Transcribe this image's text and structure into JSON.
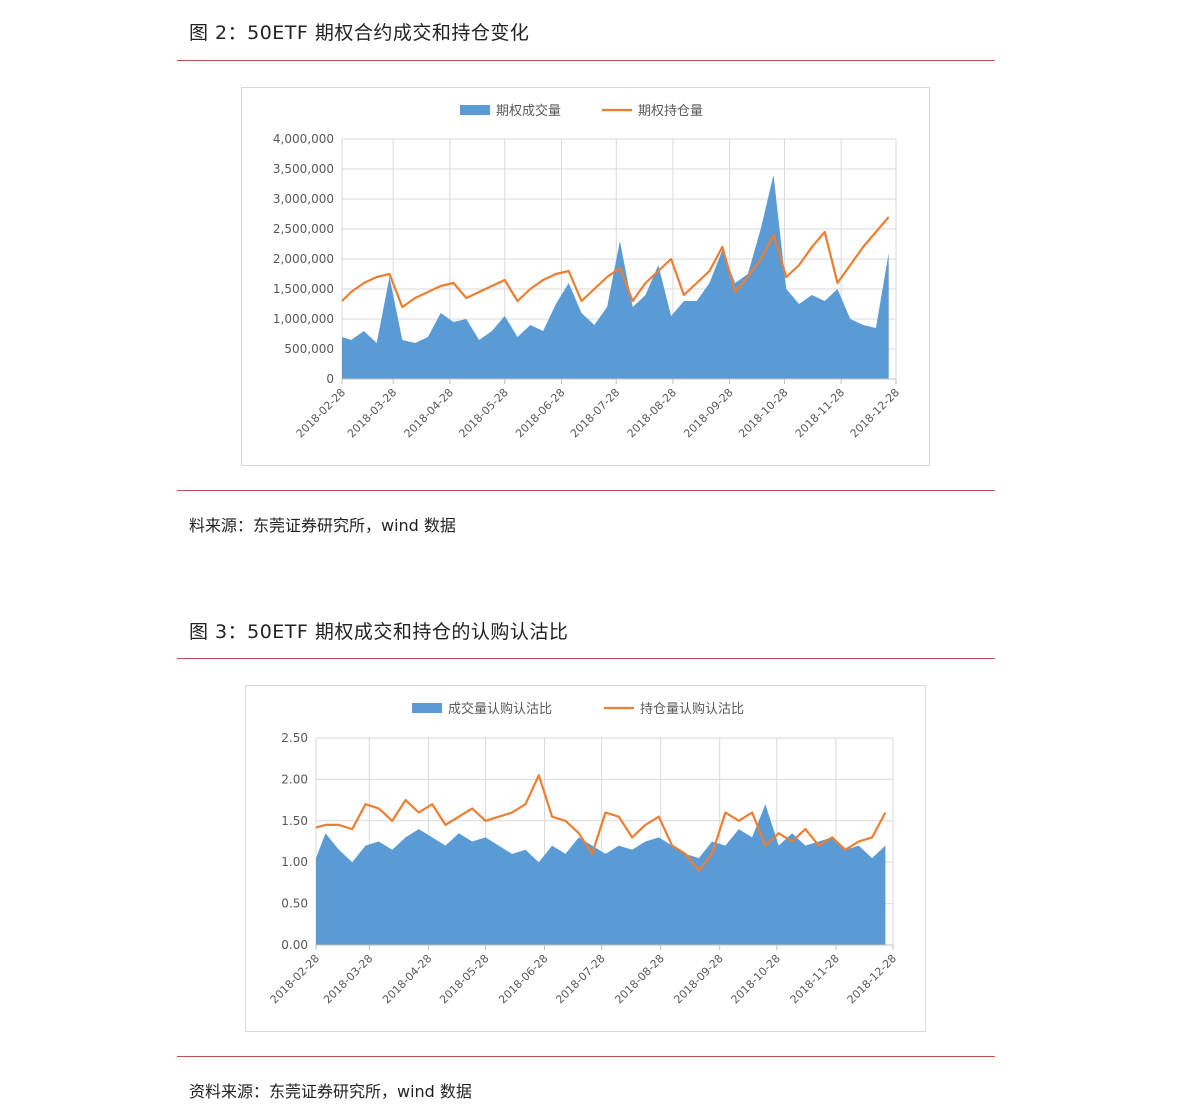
{
  "figures": [
    {
      "title": "图 2：50ETF 期权合约成交和持仓变化",
      "source": "料来源：东莞证券研究所，wind 数据"
    },
    {
      "title": "图 3：50ETF 期权成交和持仓的认购认沽比",
      "source": "资料来源：东莞证券研究所，wind 数据"
    }
  ],
  "colors": {
    "rule": "#c0504d",
    "area": "#5b9bd5",
    "line": "#ed7d31",
    "grid": "#d9d9d9"
  },
  "chart_data": [
    {
      "type": "area",
      "legend_position": "top",
      "grid": true,
      "x_ticks": [
        "2018-02-28",
        "2018-03-28",
        "2018-04-28",
        "2018-05-28",
        "2018-06-28",
        "2018-07-28",
        "2018-08-28",
        "2018-09-28",
        "2018-10-28",
        "2018-11-28",
        "2018-12-28"
      ],
      "ylim": [
        0,
        4000000
      ],
      "y_ticks": [
        "0",
        "500,000",
        "1,000,000",
        "1,500,000",
        "2,000,000",
        "2,500,000",
        "3,000,000",
        "3,500,000",
        "4,000,000"
      ],
      "x_dates": [
        "2018-02-28",
        "2018-03-05",
        "2018-03-12",
        "2018-03-19",
        "2018-03-26",
        "2018-04-02",
        "2018-04-09",
        "2018-04-16",
        "2018-04-23",
        "2018-04-30",
        "2018-05-07",
        "2018-05-14",
        "2018-05-21",
        "2018-05-28",
        "2018-06-04",
        "2018-06-11",
        "2018-06-18",
        "2018-06-25",
        "2018-07-02",
        "2018-07-09",
        "2018-07-16",
        "2018-07-23",
        "2018-07-30",
        "2018-08-06",
        "2018-08-13",
        "2018-08-20",
        "2018-08-27",
        "2018-09-03",
        "2018-09-10",
        "2018-09-17",
        "2018-09-24",
        "2018-10-01",
        "2018-10-08",
        "2018-10-15",
        "2018-10-22",
        "2018-10-29",
        "2018-11-05",
        "2018-11-12",
        "2018-11-19",
        "2018-11-26",
        "2018-12-03",
        "2018-12-10",
        "2018-12-17",
        "2018-12-24"
      ],
      "series": [
        {
          "name": "期权成交量",
          "kind": "area",
          "values": [
            700000,
            650000,
            800000,
            600000,
            1700000,
            650000,
            600000,
            700000,
            1100000,
            950000,
            1000000,
            650000,
            800000,
            1050000,
            700000,
            900000,
            800000,
            1250000,
            1600000,
            1100000,
            900000,
            1200000,
            2300000,
            1200000,
            1400000,
            1900000,
            1050000,
            1300000,
            1300000,
            1600000,
            2150000,
            1600000,
            1750000,
            2500000,
            3400000,
            1500000,
            1250000,
            1400000,
            1300000,
            1500000,
            1000000,
            900000,
            850000,
            2100000
          ]
        },
        {
          "name": "期权持仓量",
          "kind": "line",
          "values": [
            1300000,
            1450000,
            1600000,
            1700000,
            1750000,
            1200000,
            1350000,
            1450000,
            1550000,
            1600000,
            1350000,
            1450000,
            1550000,
            1650000,
            1300000,
            1500000,
            1650000,
            1750000,
            1800000,
            1300000,
            1500000,
            1700000,
            1850000,
            1300000,
            1600000,
            1800000,
            2000000,
            1400000,
            1600000,
            1800000,
            2200000,
            1450000,
            1700000,
            2000000,
            2400000,
            1700000,
            1900000,
            2200000,
            2450000,
            1600000,
            1900000,
            2200000,
            2450000,
            2700000
          ]
        }
      ]
    },
    {
      "type": "area",
      "legend_position": "top",
      "grid": true,
      "x_ticks": [
        "2018-02-28",
        "2018-03-28",
        "2018-04-28",
        "2018-05-28",
        "2018-06-28",
        "2018-07-28",
        "2018-08-28",
        "2018-09-28",
        "2018-10-28",
        "2018-11-28",
        "2018-12-28"
      ],
      "ylim": [
        0,
        2.5
      ],
      "y_ticks": [
        "0.00",
        "0.50",
        "1.00",
        "1.50",
        "2.00",
        "2.50"
      ],
      "x_dates": [
        "2018-02-28",
        "2018-03-05",
        "2018-03-12",
        "2018-03-19",
        "2018-03-26",
        "2018-04-02",
        "2018-04-09",
        "2018-04-16",
        "2018-04-23",
        "2018-04-30",
        "2018-05-07",
        "2018-05-14",
        "2018-05-21",
        "2018-05-28",
        "2018-06-04",
        "2018-06-11",
        "2018-06-18",
        "2018-06-25",
        "2018-07-02",
        "2018-07-09",
        "2018-07-16",
        "2018-07-23",
        "2018-07-30",
        "2018-08-06",
        "2018-08-13",
        "2018-08-20",
        "2018-08-27",
        "2018-09-03",
        "2018-09-10",
        "2018-09-17",
        "2018-09-24",
        "2018-10-01",
        "2018-10-08",
        "2018-10-15",
        "2018-10-22",
        "2018-10-29",
        "2018-11-05",
        "2018-11-12",
        "2018-11-19",
        "2018-11-26",
        "2018-12-03",
        "2018-12-10",
        "2018-12-17",
        "2018-12-24"
      ],
      "series": [
        {
          "name": "成交量认购认沽比",
          "kind": "area",
          "values": [
            1.05,
            1.35,
            1.15,
            1.0,
            1.2,
            1.25,
            1.15,
            1.3,
            1.4,
            1.3,
            1.2,
            1.35,
            1.25,
            1.3,
            1.2,
            1.1,
            1.15,
            1.0,
            1.2,
            1.1,
            1.3,
            1.2,
            1.1,
            1.2,
            1.15,
            1.25,
            1.3,
            1.2,
            1.1,
            1.05,
            1.25,
            1.2,
            1.4,
            1.3,
            1.7,
            1.2,
            1.35,
            1.2,
            1.25,
            1.3,
            1.15,
            1.2,
            1.05,
            1.2
          ]
        },
        {
          "name": "持仓量认购认沽比",
          "kind": "line",
          "values": [
            1.42,
            1.45,
            1.45,
            1.4,
            1.7,
            1.65,
            1.5,
            1.75,
            1.6,
            1.7,
            1.45,
            1.55,
            1.65,
            1.5,
            1.55,
            1.6,
            1.7,
            2.05,
            1.55,
            1.5,
            1.35,
            1.1,
            1.6,
            1.55,
            1.3,
            1.45,
            1.55,
            1.2,
            1.1,
            0.9,
            1.1,
            1.6,
            1.5,
            1.6,
            1.2,
            1.35,
            1.25,
            1.4,
            1.2,
            1.3,
            1.15,
            1.25,
            1.3,
            1.6
          ]
        }
      ]
    }
  ]
}
